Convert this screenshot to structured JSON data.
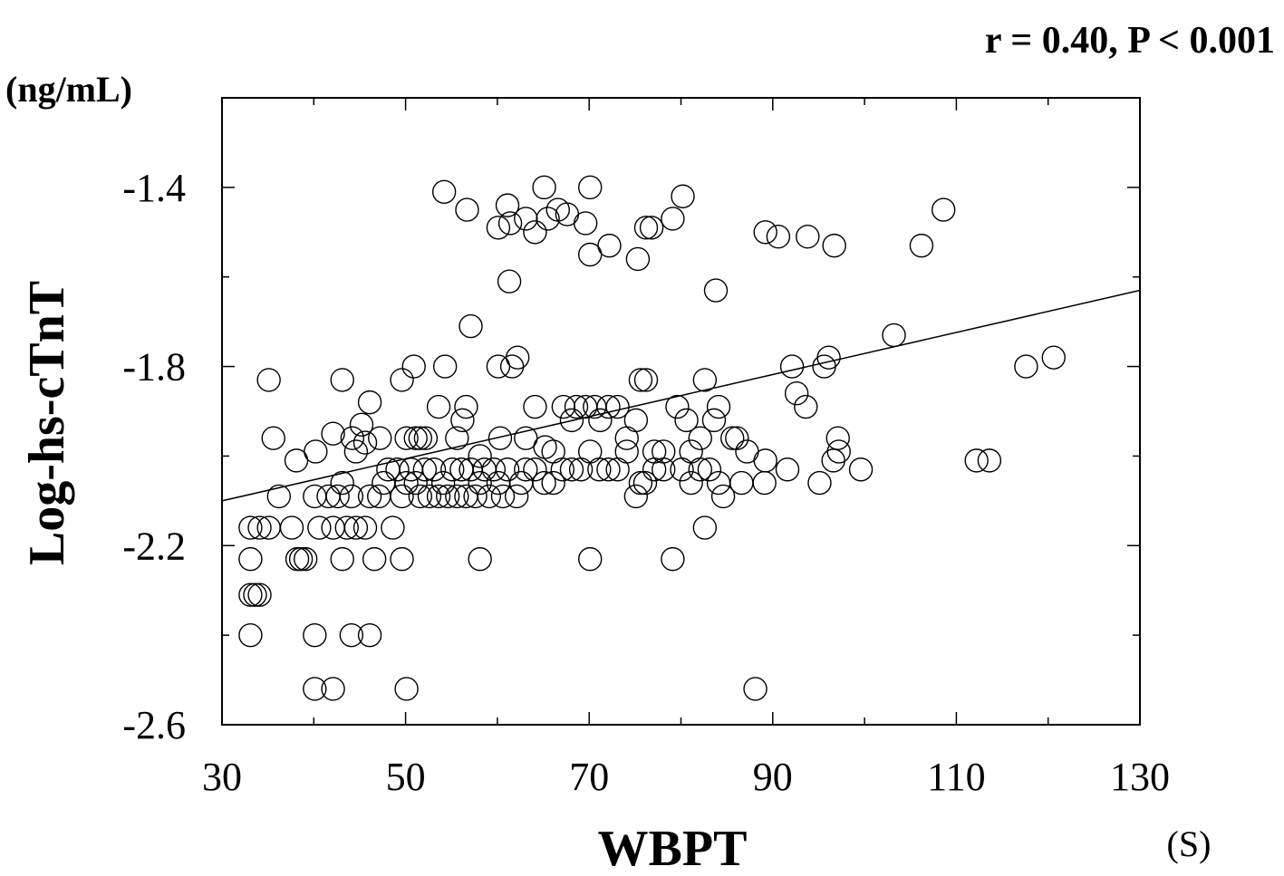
{
  "chart_data": {
    "type": "scatter",
    "title": "",
    "annotation": "r = 0.40, P < 0.001",
    "xlabel": "WBPT",
    "xunit": "(S)",
    "ylabel": "Log-hs-cTnT",
    "yunit": "(ng/mL)",
    "xlim": [
      30,
      130
    ],
    "ylim": [
      -2.6,
      -1.2
    ],
    "xticks": [
      30,
      50,
      70,
      90,
      110,
      130
    ],
    "yticks": [
      -2.6,
      -2.2,
      -1.8,
      -1.4
    ],
    "xtick_labels": [
      "30",
      "50",
      "70",
      "90",
      "110",
      "130"
    ],
    "ytick_labels": [
      "-2.6",
      "-2.2",
      "-1.8",
      "-1.4"
    ],
    "grid": false,
    "marker": "open-circle",
    "trendline": {
      "x": [
        30,
        130
      ],
      "y": [
        -2.1,
        -1.63
      ]
    },
    "series": [
      {
        "points": [
          [
            54.2,
            -1.41
          ],
          [
            56.7,
            -1.45
          ],
          [
            60.1,
            -1.49
          ],
          [
            61.1,
            -1.44
          ],
          [
            61.4,
            -1.48
          ],
          [
            63.1,
            -1.47
          ],
          [
            64.1,
            -1.5
          ],
          [
            65.1,
            -1.4
          ],
          [
            65.5,
            -1.47
          ],
          [
            66.6,
            -1.45
          ],
          [
            67.6,
            -1.46
          ],
          [
            69.6,
            -1.48
          ],
          [
            70.1,
            -1.4
          ],
          [
            70.1,
            -1.55
          ],
          [
            72.2,
            -1.53
          ],
          [
            75.3,
            -1.56
          ],
          [
            76.2,
            -1.49
          ],
          [
            76.8,
            -1.49
          ],
          [
            79.1,
            -1.47
          ],
          [
            80.2,
            -1.42
          ],
          [
            89.2,
            -1.5
          ],
          [
            90.6,
            -1.51
          ],
          [
            93.8,
            -1.51
          ],
          [
            96.7,
            -1.53
          ],
          [
            106.2,
            -1.53
          ],
          [
            108.6,
            -1.45
          ],
          [
            61.3,
            -1.61
          ],
          [
            83.8,
            -1.63
          ],
          [
            57.1,
            -1.71
          ],
          [
            103.2,
            -1.73
          ],
          [
            35.1,
            -1.83
          ],
          [
            35.6,
            -1.96
          ],
          [
            38.1,
            -2.01
          ],
          [
            40.2,
            -1.99
          ],
          [
            42.1,
            -1.95
          ],
          [
            43.1,
            -1.83
          ],
          [
            44.2,
            -1.96
          ],
          [
            44.6,
            -1.99
          ],
          [
            45.6,
            -1.97
          ],
          [
            45.2,
            -1.93
          ],
          [
            46.1,
            -1.88
          ],
          [
            47.2,
            -1.96
          ],
          [
            49.6,
            -1.83
          ],
          [
            50.1,
            -1.96
          ],
          [
            50.9,
            -1.8
          ],
          [
            51.1,
            -1.96
          ],
          [
            51.6,
            -1.96
          ],
          [
            52.2,
            -1.96
          ],
          [
            53.6,
            -1.89
          ],
          [
            54.3,
            -1.8
          ],
          [
            55.6,
            -1.96
          ],
          [
            56.2,
            -1.92
          ],
          [
            56.6,
            -1.89
          ],
          [
            58.1,
            -2
          ],
          [
            60.1,
            -1.8
          ],
          [
            60.3,
            -1.96
          ],
          [
            61.6,
            -1.8
          ],
          [
            62.2,
            -1.78
          ],
          [
            63.1,
            -1.96
          ],
          [
            64.1,
            -1.89
          ],
          [
            65.2,
            -1.98
          ],
          [
            66.1,
            -1.99
          ],
          [
            67.2,
            -1.89
          ],
          [
            68.1,
            -1.92
          ],
          [
            68.6,
            -1.89
          ],
          [
            69.6,
            -1.89
          ],
          [
            70.6,
            -1.89
          ],
          [
            71.2,
            -1.92
          ],
          [
            72.1,
            -1.89
          ],
          [
            73.1,
            -1.89
          ],
          [
            74.1,
            -1.96
          ],
          [
            75.1,
            -1.92
          ],
          [
            75.6,
            -1.83
          ],
          [
            76.2,
            -1.83
          ],
          [
            77.1,
            -1.99
          ],
          [
            78.1,
            -1.99
          ],
          [
            79.6,
            -1.89
          ],
          [
            80.6,
            -1.92
          ],
          [
            81.1,
            -1.99
          ],
          [
            82.1,
            -1.96
          ],
          [
            82.6,
            -1.83
          ],
          [
            83.6,
            -1.92
          ],
          [
            84.1,
            -1.89
          ],
          [
            85.6,
            -1.96
          ],
          [
            86.1,
            -1.96
          ],
          [
            87.2,
            -1.99
          ],
          [
            92.1,
            -1.8
          ],
          [
            92.6,
            -1.86
          ],
          [
            93.6,
            -1.89
          ],
          [
            95.6,
            -1.8
          ],
          [
            96.1,
            -1.78
          ],
          [
            97.1,
            -1.96
          ],
          [
            117.6,
            -1.8
          ],
          [
            120.6,
            -1.78
          ],
          [
            89.2,
            -2.01
          ],
          [
            91.6,
            -2.03
          ],
          [
            99.6,
            -2.03
          ],
          [
            112.2,
            -2.01
          ],
          [
            113.6,
            -2.01
          ],
          [
            96.6,
            -2.01
          ],
          [
            97.2,
            -1.99
          ],
          [
            33.1,
            -2.16
          ],
          [
            34.1,
            -2.16
          ],
          [
            35.1,
            -2.16
          ],
          [
            36.2,
            -2.09
          ],
          [
            37.6,
            -2.16
          ],
          [
            38.2,
            -2.23
          ],
          [
            39.1,
            -2.23
          ],
          [
            40.1,
            -2.09
          ],
          [
            40.6,
            -2.16
          ],
          [
            41.6,
            -2.09
          ],
          [
            42.1,
            -2.16
          ],
          [
            42.6,
            -2.09
          ],
          [
            43.1,
            -2.06
          ],
          [
            43.6,
            -2.16
          ],
          [
            44.1,
            -2.09
          ],
          [
            44.6,
            -2.16
          ],
          [
            45.6,
            -2.16
          ],
          [
            46.1,
            -2.09
          ],
          [
            47.1,
            -2.09
          ],
          [
            47.6,
            -2.06
          ],
          [
            48.1,
            -2.03
          ],
          [
            48.6,
            -2.16
          ],
          [
            49.1,
            -2.03
          ],
          [
            49.6,
            -2.09
          ],
          [
            50.1,
            -2.06
          ],
          [
            50.6,
            -2.03
          ],
          [
            51.1,
            -2.06
          ],
          [
            51.6,
            -2.09
          ],
          [
            52.1,
            -2.03
          ],
          [
            52.6,
            -2.09
          ],
          [
            53.1,
            -2.03
          ],
          [
            53.6,
            -2.09
          ],
          [
            54.1,
            -2.06
          ],
          [
            54.6,
            -2.09
          ],
          [
            55.1,
            -2.03
          ],
          [
            55.6,
            -2.09
          ],
          [
            56.1,
            -2.03
          ],
          [
            56.6,
            -2.09
          ],
          [
            57.1,
            -2.03
          ],
          [
            57.6,
            -2.09
          ],
          [
            58.1,
            -2.06
          ],
          [
            58.6,
            -2.03
          ],
          [
            59.1,
            -2.09
          ],
          [
            59.6,
            -2.03
          ],
          [
            60.1,
            -2.06
          ],
          [
            60.6,
            -2.09
          ],
          [
            61.1,
            -2.03
          ],
          [
            62.1,
            -2.09
          ],
          [
            62.6,
            -2.06
          ],
          [
            63.1,
            -2.03
          ],
          [
            64.1,
            -2.03
          ],
          [
            65.1,
            -2.06
          ],
          [
            66.1,
            -2.06
          ],
          [
            67.1,
            -2.03
          ],
          [
            68.1,
            -2.03
          ],
          [
            69.1,
            -2.03
          ],
          [
            70.1,
            -1.99
          ],
          [
            71.1,
            -2.03
          ],
          [
            72.1,
            -2.03
          ],
          [
            73.1,
            -2.03
          ],
          [
            74.1,
            -1.99
          ],
          [
            75.1,
            -2.09
          ],
          [
            75.6,
            -2.06
          ],
          [
            76.1,
            -2.06
          ],
          [
            77.1,
            -2.03
          ],
          [
            78.1,
            -2.03
          ],
          [
            80.1,
            -2.03
          ],
          [
            81.1,
            -2.06
          ],
          [
            82.1,
            -2.03
          ],
          [
            83.1,
            -2.03
          ],
          [
            84.1,
            -2.06
          ],
          [
            84.6,
            -2.09
          ],
          [
            86.6,
            -2.06
          ],
          [
            89.1,
            -2.06
          ],
          [
            95.1,
            -2.06
          ],
          [
            82.6,
            -2.16
          ],
          [
            33.1,
            -2.23
          ],
          [
            38.6,
            -2.23
          ],
          [
            43.1,
            -2.23
          ],
          [
            46.6,
            -2.23
          ],
          [
            49.6,
            -2.23
          ],
          [
            58.1,
            -2.23
          ],
          [
            70.1,
            -2.23
          ],
          [
            79.1,
            -2.23
          ],
          [
            33.1,
            -2.31
          ],
          [
            33.6,
            -2.31
          ],
          [
            34.1,
            -2.31
          ],
          [
            33.1,
            -2.4
          ],
          [
            40.1,
            -2.4
          ],
          [
            44.1,
            -2.4
          ],
          [
            46.1,
            -2.4
          ],
          [
            40.1,
            -2.52
          ],
          [
            42.1,
            -2.52
          ],
          [
            50.1,
            -2.52
          ],
          [
            88.1,
            -2.52
          ]
        ]
      }
    ]
  }
}
